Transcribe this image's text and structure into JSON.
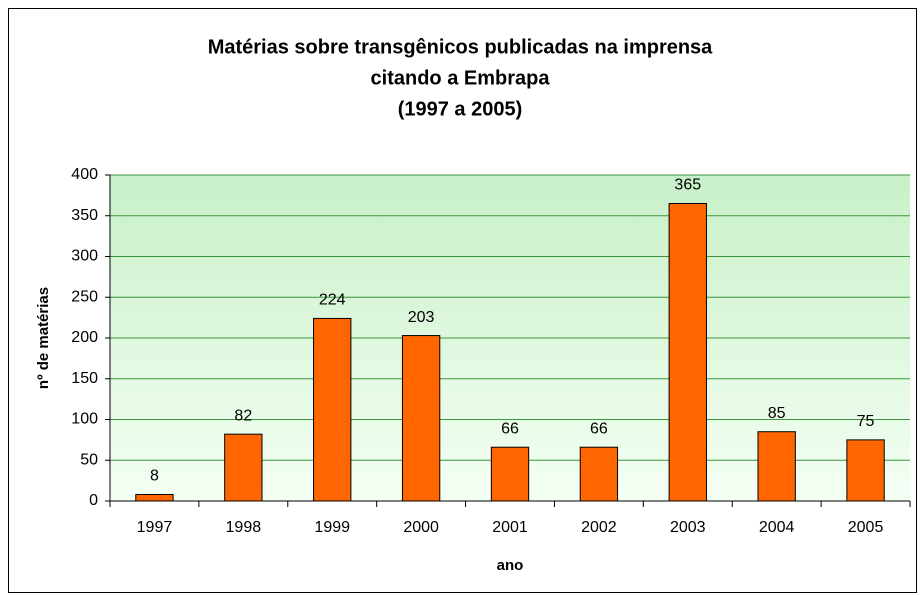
{
  "chart_data": {
    "type": "bar",
    "title": [
      "Matérias sobre transgênicos publicadas na imprensa",
      "citando a Embrapa",
      "(1997 a 2005)"
    ],
    "x_label": "ano",
    "y_label": "nº de matérias",
    "categories": [
      "1997",
      "1998",
      "1999",
      "2000",
      "2001",
      "2002",
      "2003",
      "2004",
      "2005"
    ],
    "values": [
      8,
      82,
      224,
      203,
      66,
      66,
      365,
      85,
      75
    ],
    "color": "#ff6600",
    "ylim": [
      0,
      400
    ],
    "yticks": [
      0,
      50,
      100,
      150,
      200,
      250,
      300,
      350,
      400
    ],
    "grid": true
  }
}
